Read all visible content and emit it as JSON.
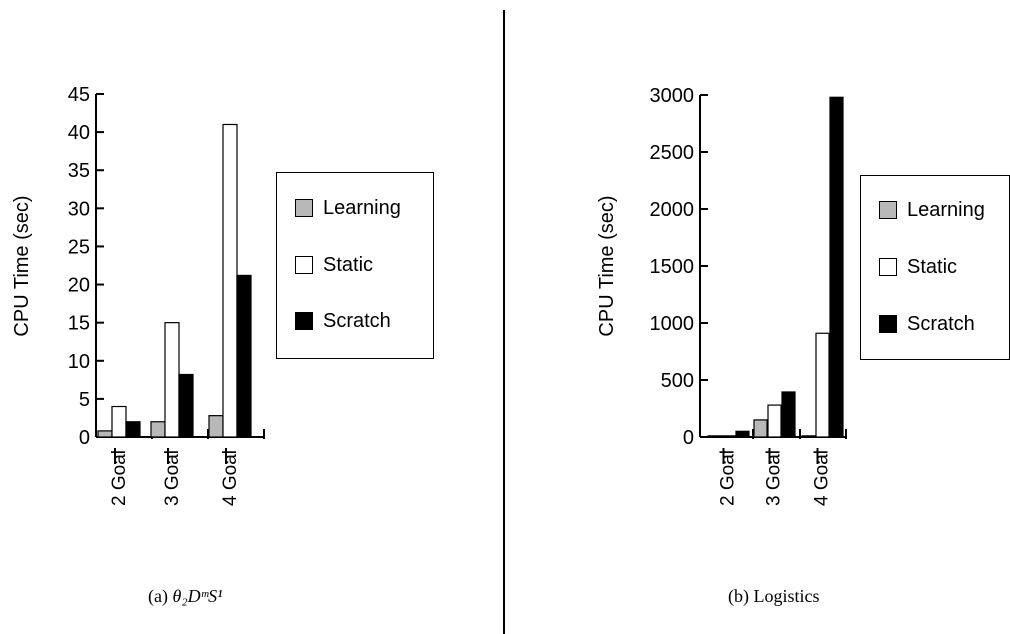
{
  "colors": {
    "learning": "#b8b8b8",
    "static": "#ffffff",
    "scratch": "#000000"
  },
  "chart_data": [
    {
      "type": "bar",
      "ylabel": "CPU Time (sec)",
      "ylim": [
        0,
        45
      ],
      "yticks": [
        0,
        5,
        10,
        15,
        20,
        25,
        30,
        35,
        40,
        45
      ],
      "categories": [
        "2 Goal",
        "3 Goal",
        "4 Goal"
      ],
      "series": [
        {
          "name": "Learning",
          "values": [
            0.8,
            2,
            2.8
          ]
        },
        {
          "name": "Static",
          "values": [
            4,
            15,
            41
          ]
        },
        {
          "name": "Scratch",
          "values": [
            2,
            8.2,
            21.2
          ]
        }
      ],
      "legend": "right",
      "grid": false,
      "caption": {
        "prefix": "(a) ",
        "math": "θ₂DᵐS¹"
      }
    },
    {
      "type": "bar",
      "ylabel": "CPU Time (sec)",
      "ylim": [
        0,
        3000
      ],
      "yticks": [
        0,
        500,
        1000,
        1500,
        2000,
        2500,
        3000
      ],
      "categories": [
        "2 Goal",
        "3 Goal",
        "4 Goal"
      ],
      "series": [
        {
          "name": "Learning",
          "values": [
            10,
            150,
            10
          ]
        },
        {
          "name": "Static",
          "values": [
            10,
            280,
            910
          ]
        },
        {
          "name": "Scratch",
          "values": [
            50,
            395,
            2980
          ]
        }
      ],
      "legend": "right",
      "grid": false,
      "caption": {
        "prefix": "(b) Logistics",
        "math": ""
      }
    }
  ]
}
